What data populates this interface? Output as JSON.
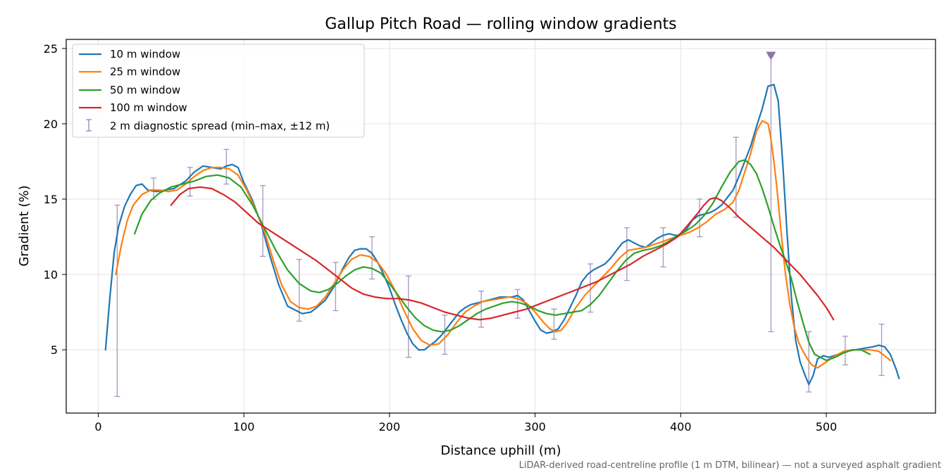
{
  "chart_data": {
    "type": "line",
    "title": "Gallup Pitch Road — rolling window gradients",
    "xlabel": "Distance uphill (m)",
    "ylabel": "Gradient (%)",
    "xlim": [
      -22,
      575
    ],
    "ylim": [
      0.8,
      25.6
    ],
    "xticks": [
      0,
      100,
      200,
      300,
      400,
      500
    ],
    "yticks": [
      5,
      10,
      15,
      20,
      25
    ],
    "grid": true,
    "legend_position": "top-left",
    "footnote": "LiDAR-derived road-centreline profile (1 m DTM, bilinear) — not a surveyed asphalt gradient",
    "series": [
      {
        "name": "10 m window",
        "color": "#1f77b4",
        "x": [
          5,
          8,
          11,
          14,
          18,
          22,
          26,
          30,
          34,
          40,
          46,
          52,
          60,
          66,
          72,
          78,
          84,
          88,
          92,
          96,
          100,
          106,
          112,
          118,
          124,
          130,
          136,
          140,
          146,
          150,
          156,
          162,
          168,
          172,
          176,
          180,
          184,
          188,
          192,
          196,
          200,
          204,
          208,
          212,
          216,
          220,
          224,
          228,
          232,
          236,
          240,
          244,
          248,
          252,
          256,
          260,
          264,
          268,
          272,
          276,
          280,
          284,
          288,
          292,
          296,
          300,
          304,
          308,
          312,
          316,
          320,
          324,
          328,
          332,
          336,
          340,
          344,
          348,
          352,
          356,
          360,
          364,
          368,
          372,
          376,
          380,
          384,
          388,
          392,
          396,
          400,
          404,
          408,
          412,
          416,
          420,
          424,
          428,
          432,
          436,
          440,
          444,
          448,
          452,
          456,
          460,
          464,
          467,
          470,
          473,
          476,
          479,
          482,
          485,
          488,
          491,
          494,
          498,
          502,
          508,
          514,
          520,
          526,
          532,
          536,
          540,
          544,
          548,
          550
        ],
        "y": [
          5.0,
          8.5,
          11.5,
          13.2,
          14.5,
          15.3,
          15.9,
          16.0,
          15.6,
          15.5,
          15.6,
          15.7,
          16.2,
          16.8,
          17.2,
          17.1,
          17.0,
          17.2,
          17.3,
          17.1,
          16.1,
          14.9,
          13.3,
          11.2,
          9.3,
          7.9,
          7.6,
          7.4,
          7.5,
          7.8,
          8.3,
          9.2,
          10.4,
          11.1,
          11.6,
          11.7,
          11.7,
          11.4,
          10.8,
          10.0,
          9.1,
          8.0,
          7.0,
          6.1,
          5.4,
          5.0,
          5.0,
          5.3,
          5.6,
          6.0,
          6.5,
          7.0,
          7.5,
          7.8,
          8.0,
          8.1,
          8.2,
          8.3,
          8.4,
          8.5,
          8.5,
          8.5,
          8.6,
          8.3,
          7.6,
          6.9,
          6.3,
          6.1,
          6.2,
          6.4,
          7.0,
          7.8,
          8.6,
          9.5,
          10.0,
          10.3,
          10.5,
          10.7,
          11.1,
          11.6,
          12.1,
          12.3,
          12.1,
          11.9,
          11.8,
          12.1,
          12.4,
          12.6,
          12.7,
          12.6,
          12.6,
          13.0,
          13.6,
          13.9,
          14.0,
          14.1,
          14.3,
          14.6,
          15.1,
          15.6,
          16.5,
          17.5,
          18.5,
          19.8,
          21.0,
          22.5,
          22.6,
          21.5,
          17.5,
          12.8,
          8.5,
          5.6,
          4.2,
          3.4,
          2.7,
          3.3,
          4.4,
          4.6,
          4.5,
          4.7,
          4.9,
          5.0,
          5.1,
          5.2,
          5.3,
          5.2,
          4.7,
          3.7,
          3.1
        ]
      },
      {
        "name": "25 m window",
        "color": "#ff7f0e",
        "x": [
          12,
          16,
          20,
          24,
          30,
          36,
          42,
          48,
          54,
          60,
          66,
          72,
          78,
          84,
          90,
          96,
          102,
          108,
          114,
          120,
          126,
          132,
          138,
          144,
          150,
          156,
          162,
          168,
          174,
          180,
          186,
          192,
          198,
          204,
          210,
          216,
          222,
          228,
          234,
          240,
          246,
          252,
          258,
          264,
          270,
          276,
          282,
          288,
          294,
          300,
          306,
          310,
          314,
          318,
          322,
          328,
          334,
          340,
          346,
          352,
          358,
          364,
          370,
          376,
          382,
          388,
          394,
          400,
          406,
          412,
          418,
          424,
          430,
          436,
          440,
          444,
          448,
          452,
          456,
          460,
          462,
          464,
          466,
          468,
          470,
          472,
          475,
          478,
          481,
          484,
          487,
          490,
          494,
          500,
          506,
          512,
          518,
          524,
          530,
          536,
          540,
          544
        ],
        "y": [
          10.0,
          12.0,
          13.6,
          14.6,
          15.3,
          15.6,
          15.6,
          15.5,
          15.6,
          16.0,
          16.5,
          16.9,
          17.1,
          17.1,
          17.0,
          16.6,
          15.6,
          14.3,
          12.9,
          11.0,
          9.3,
          8.2,
          7.8,
          7.7,
          7.9,
          8.5,
          9.4,
          10.3,
          11.0,
          11.3,
          11.2,
          10.8,
          10.0,
          8.9,
          7.6,
          6.4,
          5.6,
          5.3,
          5.4,
          6.0,
          6.8,
          7.5,
          7.9,
          8.2,
          8.3,
          8.4,
          8.5,
          8.4,
          8.1,
          7.5,
          6.8,
          6.4,
          6.2,
          6.3,
          6.8,
          7.8,
          8.6,
          9.2,
          9.8,
          10.4,
          11.1,
          11.6,
          11.7,
          11.8,
          12.0,
          12.2,
          12.4,
          12.6,
          12.8,
          13.1,
          13.5,
          14.0,
          14.3,
          14.8,
          15.6,
          16.8,
          18.0,
          19.5,
          20.2,
          20.0,
          19.0,
          17.5,
          15.8,
          13.8,
          11.8,
          10.0,
          8.0,
          6.5,
          5.5,
          4.9,
          4.4,
          4.0,
          3.8,
          4.2,
          4.6,
          4.9,
          5.0,
          5.0,
          5.0,
          4.9,
          4.6,
          4.3
        ]
      },
      {
        "name": "50 m window",
        "color": "#2ca02c",
        "x": [
          25,
          30,
          36,
          42,
          50,
          58,
          66,
          74,
          82,
          90,
          98,
          106,
          114,
          122,
          130,
          138,
          146,
          152,
          158,
          164,
          170,
          176,
          182,
          188,
          194,
          200,
          206,
          212,
          218,
          224,
          230,
          236,
          242,
          248,
          254,
          260,
          266,
          272,
          278,
          284,
          290,
          296,
          302,
          308,
          314,
          320,
          326,
          332,
          338,
          344,
          350,
          356,
          362,
          368,
          374,
          380,
          386,
          392,
          398,
          404,
          410,
          416,
          422,
          428,
          434,
          440,
          444,
          448,
          452,
          456,
          460,
          464,
          468,
          472,
          476,
          480,
          484,
          488,
          492,
          496,
          500,
          506,
          512,
          518,
          524,
          530
        ],
        "y": [
          12.7,
          14.0,
          14.9,
          15.4,
          15.8,
          16.0,
          16.2,
          16.5,
          16.6,
          16.4,
          15.8,
          14.6,
          13.1,
          11.6,
          10.3,
          9.4,
          8.9,
          8.8,
          9.0,
          9.4,
          9.9,
          10.3,
          10.5,
          10.4,
          10.1,
          9.4,
          8.6,
          7.8,
          7.1,
          6.6,
          6.3,
          6.2,
          6.3,
          6.6,
          7.0,
          7.4,
          7.7,
          7.9,
          8.1,
          8.2,
          8.1,
          7.9,
          7.6,
          7.4,
          7.3,
          7.4,
          7.5,
          7.6,
          8.0,
          8.6,
          9.4,
          10.2,
          10.9,
          11.4,
          11.6,
          11.7,
          11.9,
          12.2,
          12.6,
          12.9,
          13.3,
          13.9,
          14.7,
          15.8,
          16.8,
          17.5,
          17.6,
          17.3,
          16.7,
          15.7,
          14.5,
          13.2,
          12.0,
          10.9,
          9.7,
          8.2,
          6.8,
          5.5,
          4.7,
          4.5,
          4.3,
          4.5,
          4.8,
          5.0,
          5.0,
          4.7
        ]
      },
      {
        "name": "100 m window",
        "color": "#d62728",
        "x": [
          50,
          56,
          62,
          70,
          78,
          86,
          94,
          102,
          110,
          118,
          126,
          134,
          142,
          150,
          158,
          166,
          174,
          182,
          190,
          198,
          206,
          214,
          222,
          230,
          238,
          246,
          254,
          262,
          270,
          278,
          286,
          294,
          302,
          310,
          318,
          326,
          334,
          342,
          350,
          358,
          366,
          374,
          382,
          390,
          398,
          406,
          412,
          416,
          420,
          424,
          428,
          434,
          440,
          446,
          452,
          458,
          464,
          470,
          476,
          482,
          488,
          494,
          500,
          505
        ],
        "y": [
          14.6,
          15.3,
          15.7,
          15.8,
          15.7,
          15.3,
          14.8,
          14.1,
          13.4,
          12.9,
          12.4,
          11.9,
          11.4,
          10.9,
          10.3,
          9.7,
          9.1,
          8.7,
          8.5,
          8.4,
          8.4,
          8.3,
          8.1,
          7.8,
          7.5,
          7.3,
          7.1,
          7.0,
          7.1,
          7.3,
          7.5,
          7.7,
          8.0,
          8.3,
          8.6,
          8.9,
          9.2,
          9.5,
          9.9,
          10.3,
          10.7,
          11.2,
          11.6,
          12.0,
          12.5,
          13.4,
          14.1,
          14.6,
          15.0,
          15.1,
          14.9,
          14.4,
          13.8,
          13.3,
          12.8,
          12.3,
          11.8,
          11.2,
          10.6,
          10.0,
          9.3,
          8.6,
          7.8,
          7.0
        ]
      }
    ],
    "error_bars": {
      "name": "2 m diagnostic spread (min–max, ±12 m)",
      "color": "#9b8cb8",
      "points": [
        {
          "x": 13,
          "low": 1.9,
          "high": 14.6
        },
        {
          "x": 38,
          "low": 15.0,
          "high": 16.4
        },
        {
          "x": 63,
          "low": 15.2,
          "high": 17.1
        },
        {
          "x": 88,
          "low": 16.0,
          "high": 18.3
        },
        {
          "x": 113,
          "low": 11.2,
          "high": 15.9
        },
        {
          "x": 138,
          "low": 6.9,
          "high": 11.0
        },
        {
          "x": 163,
          "low": 7.6,
          "high": 10.8
        },
        {
          "x": 188,
          "low": 9.7,
          "high": 12.5
        },
        {
          "x": 213,
          "low": 4.5,
          "high": 9.9
        },
        {
          "x": 238,
          "low": 4.7,
          "high": 7.3
        },
        {
          "x": 263,
          "low": 6.5,
          "high": 8.9
        },
        {
          "x": 288,
          "low": 7.1,
          "high": 9.0
        },
        {
          "x": 313,
          "low": 5.7,
          "high": 7.7
        },
        {
          "x": 338,
          "low": 7.5,
          "high": 10.7
        },
        {
          "x": 363,
          "low": 9.6,
          "high": 13.1
        },
        {
          "x": 388,
          "low": 10.5,
          "high": 13.1
        },
        {
          "x": 413,
          "low": 12.5,
          "high": 15.0
        },
        {
          "x": 438,
          "low": 13.8,
          "high": 19.1
        },
        {
          "x": 462,
          "low": 6.2,
          "high": 24.5
        },
        {
          "x": 488,
          "low": 2.2,
          "high": 6.2
        },
        {
          "x": 513,
          "low": 4.0,
          "high": 5.9
        },
        {
          "x": 538,
          "low": 3.3,
          "high": 6.7
        }
      ]
    },
    "peak_marker": {
      "x": 462,
      "y": 24.5,
      "color": "#8a76ad"
    }
  }
}
